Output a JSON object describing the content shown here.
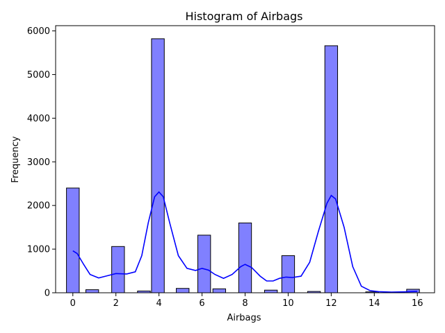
{
  "chart_data": {
    "type": "bar",
    "title": "Histogram of Airbags",
    "xlabel": "Airbags",
    "ylabel": "Frequency",
    "xlim": [
      -0.8,
      16.8
    ],
    "ylim": [
      0,
      6120
    ],
    "x_ticks": [
      0,
      2,
      4,
      6,
      8,
      10,
      12,
      14,
      16
    ],
    "y_ticks": [
      0,
      1000,
      2000,
      3000,
      4000,
      5000,
      6000
    ],
    "bin_width": 0.5926,
    "bins": [
      {
        "x": 0,
        "value": 2400
      },
      {
        "x": 0.9,
        "value": 70
      },
      {
        "x": 2.1,
        "value": 1060
      },
      {
        "x": 3.3,
        "value": 40
      },
      {
        "x": 3.95,
        "value": 5820
      },
      {
        "x": 5.1,
        "value": 100
      },
      {
        "x": 6.1,
        "value": 1320
      },
      {
        "x": 6.8,
        "value": 90
      },
      {
        "x": 8.0,
        "value": 1600
      },
      {
        "x": 9.2,
        "value": 60
      },
      {
        "x": 10.0,
        "value": 850
      },
      {
        "x": 11.2,
        "value": 30
      },
      {
        "x": 12.0,
        "value": 5660
      },
      {
        "x": 13.9,
        "value": 20
      },
      {
        "x": 15.8,
        "value": 80
      }
    ],
    "kde": [
      [
        0,
        960
      ],
      [
        0.2,
        900
      ],
      [
        0.5,
        650
      ],
      [
        0.8,
        420
      ],
      [
        1.2,
        340
      ],
      [
        1.6,
        390
      ],
      [
        2.0,
        440
      ],
      [
        2.5,
        430
      ],
      [
        2.9,
        480
      ],
      [
        3.2,
        850
      ],
      [
        3.5,
        1600
      ],
      [
        3.8,
        2200
      ],
      [
        4.0,
        2310
      ],
      [
        4.2,
        2200
      ],
      [
        4.5,
        1600
      ],
      [
        4.9,
        850
      ],
      [
        5.3,
        560
      ],
      [
        5.7,
        510
      ],
      [
        6.0,
        560
      ],
      [
        6.3,
        520
      ],
      [
        6.6,
        420
      ],
      [
        7.0,
        330
      ],
      [
        7.4,
        420
      ],
      [
        7.8,
        600
      ],
      [
        8.0,
        650
      ],
      [
        8.3,
        580
      ],
      [
        8.7,
        380
      ],
      [
        9.0,
        270
      ],
      [
        9.3,
        270
      ],
      [
        9.6,
        330
      ],
      [
        9.9,
        360
      ],
      [
        10.2,
        350
      ],
      [
        10.6,
        380
      ],
      [
        11.0,
        700
      ],
      [
        11.4,
        1400
      ],
      [
        11.8,
        2050
      ],
      [
        12.0,
        2230
      ],
      [
        12.2,
        2150
      ],
      [
        12.6,
        1500
      ],
      [
        13.0,
        600
      ],
      [
        13.4,
        150
      ],
      [
        13.8,
        50
      ],
      [
        14.2,
        25
      ],
      [
        14.8,
        15
      ],
      [
        15.4,
        20
      ],
      [
        16.0,
        30
      ]
    ],
    "bar_color": "#8080ff",
    "bar_edge_color": "#000000",
    "line_color": "#0000ff",
    "grid": false
  }
}
